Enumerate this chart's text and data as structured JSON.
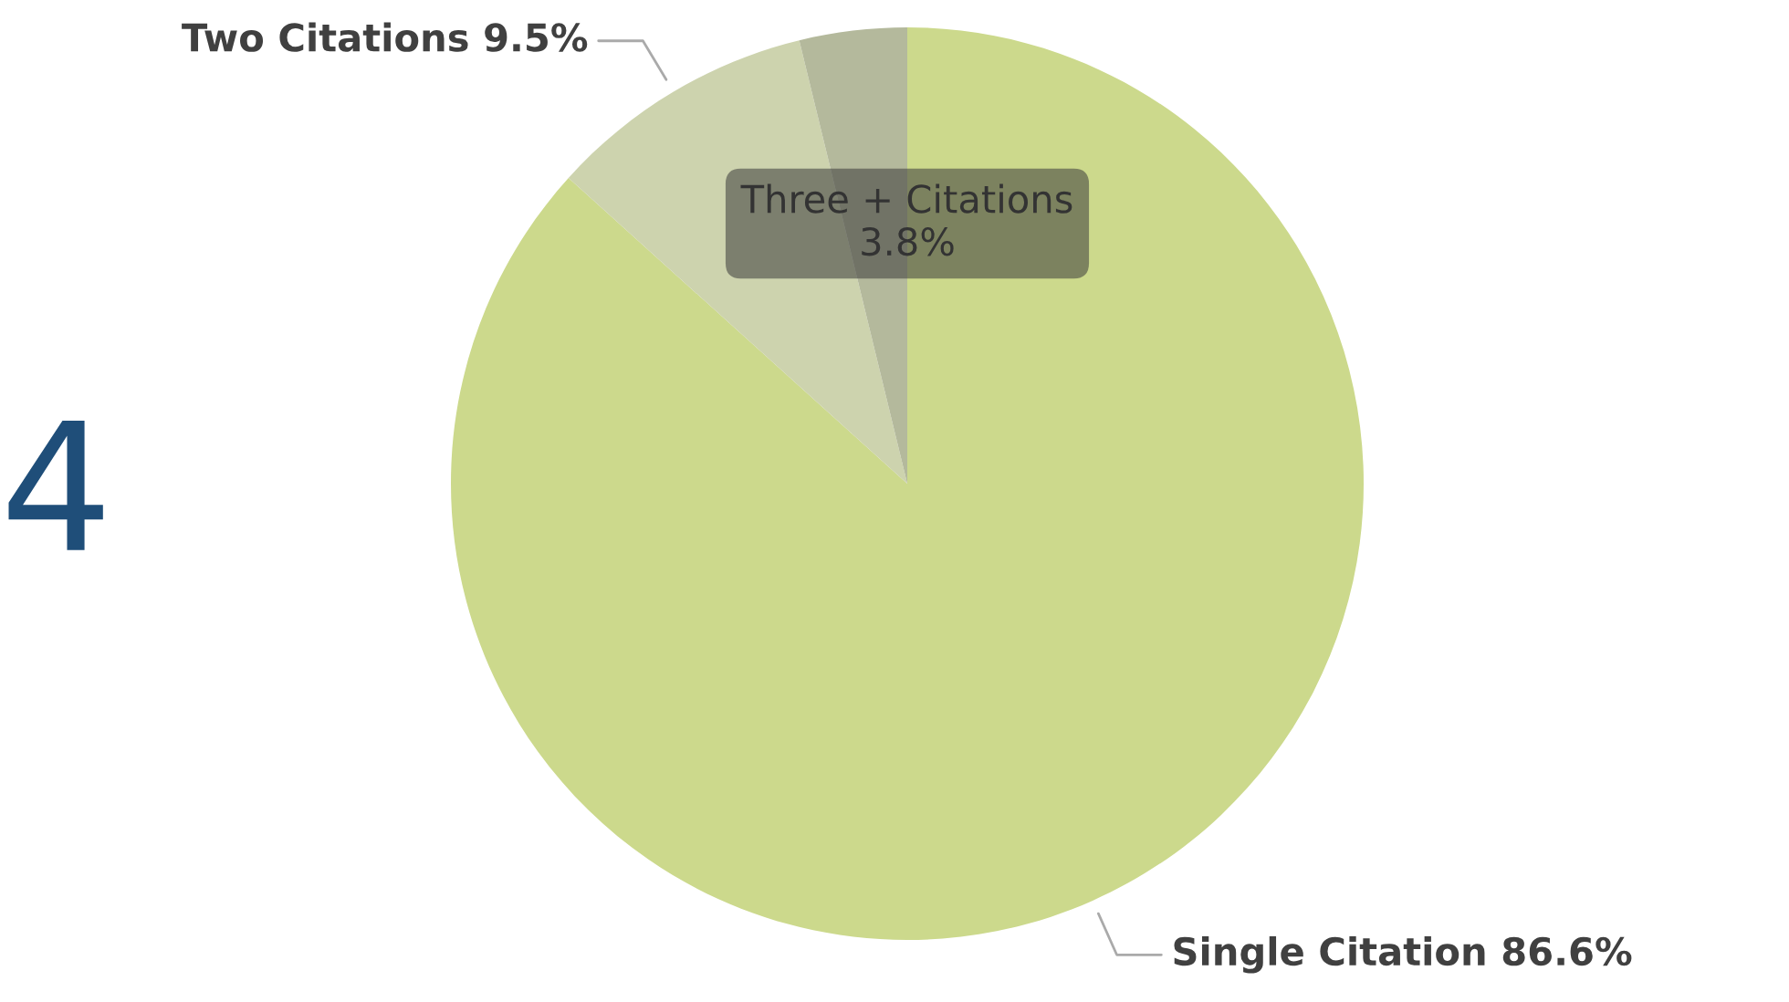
{
  "chart_data": {
    "type": "pie",
    "categories": [
      "Single Citation",
      "Two Citations",
      "Three + Citations"
    ],
    "values": [
      86.6,
      9.5,
      3.8
    ],
    "colors": [
      "#ccd98c",
      "#cdd3ae",
      "#b4b99c"
    ],
    "value_labels": [
      "86.6%",
      "9.5%",
      "3.8%"
    ],
    "annotations": [
      "4"
    ]
  }
}
